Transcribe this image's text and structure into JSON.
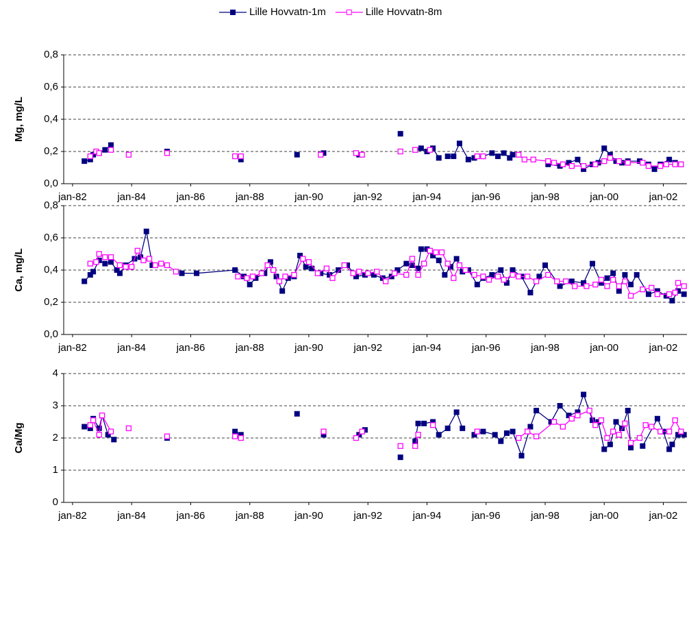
{
  "chart_data": [
    {
      "type": "line",
      "y_label": "Mg, mg/L",
      "legend": "top",
      "grid": true,
      "xlim": [
        1981.7,
        2002.8
      ],
      "ylim": [
        0,
        0.8
      ],
      "xticks": [
        {
          "value": 1982,
          "label": "jan-82"
        },
        {
          "value": 1984,
          "label": "jan-84"
        },
        {
          "value": 1986,
          "label": "jan-86"
        },
        {
          "value": 1988,
          "label": "jan-88"
        },
        {
          "value": 1990,
          "label": "jan-90"
        },
        {
          "value": 1992,
          "label": "jan-92"
        },
        {
          "value": 1994,
          "label": "jan-94"
        },
        {
          "value": 1996,
          "label": "jan-96"
        },
        {
          "value": 1998,
          "label": "jan-98"
        },
        {
          "value": 2000,
          "label": "jan-00"
        },
        {
          "value": 2002,
          "label": "jan-02"
        }
      ],
      "yticks": [
        {
          "value": 0,
          "label": "0,0"
        },
        {
          "value": 0.2,
          "label": "0,2"
        },
        {
          "value": 0.4,
          "label": "0,4"
        },
        {
          "value": 0.6,
          "label": "0,6"
        },
        {
          "value": 0.8,
          "label": "0,8"
        }
      ],
      "series": [
        {
          "name": "Lille Hovvatn-1m",
          "color": "#000080",
          "marker": "filled",
          "x": [
            1982.4,
            1982.6,
            1982.7,
            1982.9,
            1983.1,
            1983.3,
            null,
            1985.2,
            null,
            1987.7,
            null,
            1989.6,
            null,
            1990.5,
            null,
            1991.7,
            null,
            1993.1,
            null,
            1993.6,
            1993.8,
            1994.0,
            1994.2,
            1994.4,
            null,
            1994.7,
            1994.9,
            1995.1,
            1995.4,
            1995.6,
            1995.9,
            1996.2,
            1996.4,
            1996.6,
            1996.8,
            1996.9,
            null,
            1998.1,
            1998.5,
            1998.8,
            1999.1,
            1999.3,
            1999.6,
            1999.8,
            2000.0,
            2000.2,
            2000.4,
            2000.6,
            2000.8,
            2001.2,
            2001.5,
            2001.7,
            2001.9,
            2002.2,
            2002.4,
            2002.6
          ],
          "values": [
            0.14,
            0.15,
            0.18,
            0.19,
            0.21,
            0.24,
            null,
            0.2,
            null,
            0.15,
            null,
            0.18,
            null,
            0.19,
            null,
            0.18,
            null,
            0.31,
            null,
            0.21,
            0.22,
            0.2,
            0.22,
            0.16,
            null,
            0.17,
            0.17,
            0.25,
            0.15,
            0.16,
            0.17,
            0.19,
            0.17,
            0.19,
            0.16,
            0.18,
            null,
            0.12,
            0.11,
            0.13,
            0.15,
            0.09,
            0.12,
            0.13,
            0.22,
            0.18,
            0.14,
            0.13,
            0.14,
            0.14,
            0.12,
            0.09,
            0.12,
            0.15,
            0.13,
            0.12
          ]
        },
        {
          "name": "Lille Hovvatn-8m",
          "color": "#ff00ff",
          "marker": "open",
          "x": [
            1982.6,
            1982.8,
            1982.9,
            null,
            1983.3,
            null,
            1983.9,
            null,
            1985.2,
            null,
            1987.5,
            1987.7,
            null,
            1990.4,
            null,
            1991.6,
            1991.8,
            null,
            1993.1,
            null,
            1993.6,
            null,
            1994.1,
            null,
            1995.7,
            1995.9,
            null,
            1997.1,
            1997.3,
            1997.6,
            1998.1,
            1998.3,
            1998.6,
            1998.9,
            1999.3,
            1999.7,
            2000.0,
            2000.2,
            2000.5,
            2000.8,
            2001.3,
            2001.5,
            2001.9,
            2002.1,
            2002.4,
            2002.6
          ],
          "values": [
            0.17,
            0.2,
            0.19,
            null,
            0.21,
            null,
            0.18,
            null,
            0.19,
            null,
            0.17,
            0.17,
            null,
            0.18,
            null,
            0.19,
            0.18,
            null,
            0.2,
            null,
            0.21,
            null,
            0.21,
            null,
            0.17,
            0.17,
            null,
            0.18,
            0.15,
            0.15,
            0.14,
            0.13,
            0.12,
            0.11,
            0.11,
            0.12,
            0.14,
            0.16,
            0.14,
            0.13,
            0.13,
            0.11,
            0.11,
            0.12,
            0.12,
            0.12
          ]
        }
      ]
    },
    {
      "type": "line",
      "y_label": "Ca, mg/L",
      "grid": true,
      "xlim": [
        1981.7,
        2002.8
      ],
      "ylim": [
        0,
        0.8
      ],
      "xticks": [
        {
          "value": 1982,
          "label": "jan-82"
        },
        {
          "value": 1984,
          "label": "jan-84"
        },
        {
          "value": 1986,
          "label": "jan-86"
        },
        {
          "value": 1988,
          "label": "jan-88"
        },
        {
          "value": 1990,
          "label": "jan-90"
        },
        {
          "value": 1992,
          "label": "jan-92"
        },
        {
          "value": 1994,
          "label": "jan-94"
        },
        {
          "value": 1996,
          "label": "jan-96"
        },
        {
          "value": 1998,
          "label": "jan-98"
        },
        {
          "value": 2000,
          "label": "jan-00"
        },
        {
          "value": 2002,
          "label": "jan-02"
        }
      ],
      "yticks": [
        {
          "value": 0,
          "label": "0,0"
        },
        {
          "value": 0.2,
          "label": "0,2"
        },
        {
          "value": 0.4,
          "label": "0,4"
        },
        {
          "value": 0.6,
          "label": "0,6"
        },
        {
          "value": 0.8,
          "label": "0,8"
        }
      ],
      "series": [
        {
          "color": "#000080",
          "marker": "filled",
          "x": [
            1982.4,
            1982.6,
            1982.7,
            1982.9,
            1983.1,
            1983.3,
            1983.5,
            1983.6,
            1983.8,
            1984.1,
            1984.3,
            1984.5,
            1984.7,
            1985.0,
            null,
            1985.7,
            1986.2,
            1987.5,
            1987.8,
            1988.0,
            1988.2,
            1988.5,
            1988.7,
            1988.9,
            1989.1,
            1989.3,
            1989.5,
            1989.7,
            1989.9,
            1990.1,
            1990.4,
            1990.7,
            1991.0,
            1991.3,
            1991.6,
            1991.9,
            1992.2,
            1992.5,
            1992.8,
            1993.0,
            1993.3,
            1993.5,
            1993.7,
            1993.8,
            1994.0,
            1994.2,
            1994.4,
            1994.6,
            1994.8,
            1995.0,
            1995.2,
            1995.4,
            1995.7,
            1995.9,
            1996.2,
            1996.5,
            1996.7,
            1996.9,
            1997.2,
            1997.5,
            1997.8,
            1998.0,
            1998.5,
            1998.9,
            1999.3,
            1999.6,
            1999.9,
            2000.1,
            2000.3,
            2000.5,
            2000.7,
            2000.9,
            2001.1,
            2001.5,
            2001.8,
            2002.1,
            2002.3,
            2002.5,
            2002.7
          ],
          "values": [
            0.33,
            0.37,
            0.39,
            0.46,
            0.44,
            0.45,
            0.4,
            0.38,
            0.43,
            0.47,
            0.48,
            0.64,
            0.43,
            0.44,
            null,
            0.38,
            0.38,
            0.4,
            0.36,
            0.31,
            0.35,
            0.38,
            0.45,
            0.36,
            0.27,
            0.35,
            0.36,
            0.49,
            0.42,
            0.41,
            0.38,
            0.37,
            0.4,
            0.43,
            0.36,
            0.37,
            0.37,
            0.35,
            0.36,
            0.4,
            0.44,
            0.43,
            0.41,
            0.53,
            0.53,
            0.49,
            0.46,
            0.37,
            0.42,
            0.47,
            0.39,
            0.4,
            0.31,
            0.35,
            0.37,
            0.4,
            0.32,
            0.4,
            0.36,
            0.26,
            0.36,
            0.43,
            0.3,
            0.33,
            0.32,
            0.44,
            0.32,
            0.35,
            0.38,
            0.27,
            0.37,
            0.31,
            0.37,
            0.25,
            0.27,
            0.24,
            0.21,
            0.27,
            0.25
          ]
        },
        {
          "color": "#ff00ff",
          "marker": "open",
          "x": [
            1982.6,
            1982.8,
            1982.9,
            1983.1,
            1983.3,
            1983.6,
            1983.8,
            1984.0,
            1984.2,
            1984.4,
            1984.6,
            1984.8,
            1985.0,
            1985.2,
            1985.5,
            null,
            1987.6,
            1987.9,
            1988.1,
            1988.4,
            1988.6,
            1988.8,
            1989.0,
            1989.2,
            1989.5,
            1989.8,
            1990.0,
            1990.3,
            1990.6,
            1990.8,
            1991.2,
            1991.5,
            1991.7,
            1992.0,
            1992.3,
            1992.6,
            1992.9,
            1993.3,
            1993.5,
            1993.7,
            1993.9,
            1994.1,
            1994.3,
            1994.5,
            1994.7,
            1994.9,
            1995.1,
            1995.3,
            1995.6,
            1995.9,
            1996.1,
            1996.4,
            1996.6,
            1996.9,
            1997.1,
            1997.4,
            1997.7,
            1998.1,
            1998.4,
            1998.7,
            1999.0,
            1999.4,
            1999.7,
            1999.9,
            2000.1,
            2000.3,
            2000.5,
            2000.7,
            2000.9,
            2001.3,
            2001.6,
            2001.8,
            2002.2,
            2002.4,
            2002.5,
            2002.7
          ],
          "values": [
            0.44,
            0.45,
            0.5,
            0.48,
            0.48,
            0.43,
            0.42,
            0.42,
            0.52,
            0.46,
            0.47,
            0.43,
            0.44,
            0.43,
            0.39,
            null,
            0.36,
            0.35,
            0.36,
            0.38,
            0.43,
            0.4,
            0.33,
            0.36,
            0.37,
            0.47,
            0.45,
            0.38,
            0.41,
            0.35,
            0.43,
            0.38,
            0.39,
            0.38,
            0.39,
            0.33,
            0.38,
            0.37,
            0.47,
            0.37,
            0.44,
            0.52,
            0.51,
            0.51,
            0.44,
            0.35,
            0.43,
            0.4,
            0.37,
            0.36,
            0.34,
            0.36,
            0.34,
            0.37,
            0.36,
            0.36,
            0.33,
            0.37,
            0.33,
            0.33,
            0.3,
            0.3,
            0.31,
            0.34,
            0.3,
            0.34,
            0.3,
            0.33,
            0.24,
            0.28,
            0.29,
            0.25,
            0.25,
            0.26,
            0.32,
            0.3
          ]
        }
      ]
    },
    {
      "type": "line",
      "y_label": "Ca/Mg",
      "grid": true,
      "xlim": [
        1981.7,
        2002.8
      ],
      "ylim": [
        0,
        4
      ],
      "xticks": [
        {
          "value": 1982,
          "label": "jan-82"
        },
        {
          "value": 1984,
          "label": "jan-84"
        },
        {
          "value": 1986,
          "label": "jan-86"
        },
        {
          "value": 1988,
          "label": "jan-88"
        },
        {
          "value": 1990,
          "label": "jan-90"
        },
        {
          "value": 1992,
          "label": "jan-92"
        },
        {
          "value": 1994,
          "label": "jan-94"
        },
        {
          "value": 1996,
          "label": "jan-96"
        },
        {
          "value": 1998,
          "label": "jan-98"
        },
        {
          "value": 2000,
          "label": "jan-00"
        },
        {
          "value": 2002,
          "label": "jan-02"
        }
      ],
      "yticks": [
        0,
        1,
        2,
        3,
        4
      ],
      "series": [
        {
          "color": "#000080",
          "marker": "filled",
          "x": [
            1982.4,
            1982.6,
            1982.7,
            1982.9,
            1983.0,
            1983.2,
            1983.4,
            null,
            1985.2,
            null,
            1987.5,
            1987.7,
            null,
            1989.6,
            null,
            1990.5,
            null,
            1991.7,
            1991.9,
            null,
            1993.1,
            null,
            1993.6,
            1993.7,
            1993.9,
            1994.2,
            1994.4,
            1994.7,
            1995.0,
            1995.2,
            null,
            1995.6,
            1995.9,
            1996.3,
            1996.5,
            1996.7,
            1996.9,
            1997.2,
            1997.5,
            1997.7,
            1998.2,
            1998.5,
            1998.8,
            1999.1,
            1999.3,
            1999.6,
            1999.8,
            2000.0,
            2000.2,
            2000.4,
            2000.6,
            2000.8,
            2000.9,
            null,
            2001.3,
            2001.8,
            2002.0,
            2002.2,
            2002.3,
            2002.5,
            2002.7
          ],
          "values": [
            2.35,
            2.3,
            2.6,
            2.3,
            2.7,
            2.1,
            1.95,
            null,
            2.0,
            null,
            2.2,
            2.1,
            null,
            2.75,
            null,
            2.1,
            null,
            2.1,
            2.25,
            null,
            1.4,
            null,
            1.9,
            2.45,
            2.45,
            2.5,
            2.1,
            2.3,
            2.8,
            2.3,
            null,
            2.1,
            2.2,
            2.1,
            1.9,
            2.15,
            2.2,
            1.45,
            2.35,
            2.85,
            2.5,
            3.0,
            2.7,
            2.8,
            3.35,
            2.55,
            2.5,
            1.65,
            1.8,
            2.5,
            2.3,
            2.85,
            1.7,
            null,
            1.75,
            2.6,
            2.2,
            1.65,
            1.8,
            2.1,
            2.1
          ]
        },
        {
          "color": "#ff00ff",
          "marker": "open",
          "x": [
            1982.6,
            1982.7,
            1982.9,
            1983.0,
            1983.3,
            null,
            1983.9,
            null,
            1985.2,
            null,
            1987.5,
            1987.7,
            null,
            1990.5,
            null,
            1991.6,
            1991.8,
            null,
            1993.1,
            null,
            1993.6,
            1993.7,
            null,
            1994.2,
            null,
            1995.7,
            null,
            1997.1,
            1997.4,
            1997.7,
            1998.3,
            1998.6,
            1998.9,
            1999.1,
            1999.5,
            1999.7,
            1999.9,
            2000.1,
            2000.3,
            2000.5,
            2000.7,
            2000.9,
            2001.2,
            2001.4,
            2001.6,
            2001.9,
            2002.2,
            2002.4,
            2002.6
          ],
          "values": [
            2.4,
            2.55,
            2.1,
            2.7,
            2.2,
            null,
            2.3,
            null,
            2.05,
            null,
            2.05,
            2.0,
            null,
            2.2,
            null,
            2.0,
            2.2,
            null,
            1.75,
            null,
            1.75,
            2.1,
            null,
            2.4,
            null,
            2.2,
            null,
            2.0,
            2.2,
            2.05,
            2.5,
            2.35,
            2.6,
            2.7,
            2.85,
            2.4,
            2.55,
            2.0,
            2.2,
            2.1,
            2.45,
            1.85,
            2.0,
            2.4,
            2.35,
            2.2,
            2.2,
            2.55,
            2.2
          ]
        }
      ]
    }
  ]
}
